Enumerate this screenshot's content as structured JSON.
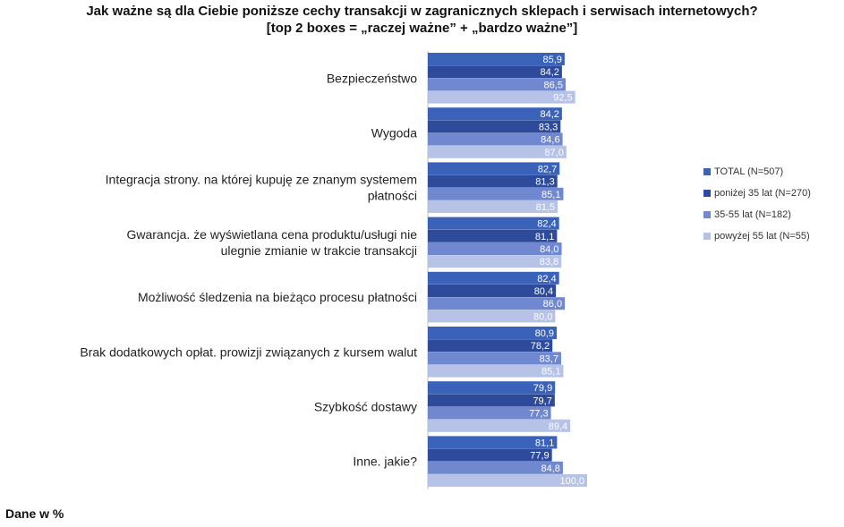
{
  "chart_data": {
    "type": "bar",
    "orientation": "horizontal",
    "title": "Jak ważne są dla Ciebie poniższe cechy transakcji w zagranicznych sklepach i serwisach internetowych?",
    "subtitle": "[top 2 boxes = „raczej ważne” + „bardzo ważne”]",
    "categories": [
      [
        "Bezpieczeństwo"
      ],
      [
        "Wygoda"
      ],
      [
        "Integracja strony. na której kupuję ze znanym systemem",
        "płatności"
      ],
      [
        "Gwarancja. że wyświetlana cena produktu/usługi nie",
        "ulegnie zmianie w trakcie transakcji"
      ],
      [
        "Możliwość śledzenia na bieżąco procesu płatności"
      ],
      [
        "Brak dodatkowych opłat. prowizji związanych z kursem walut"
      ],
      [
        "Szybkość dostawy"
      ],
      [
        "Inne. jakie?"
      ]
    ],
    "series": [
      {
        "name": "TOTAL (N=507)",
        "color": "#3A62B8",
        "label_color": "#ffffff",
        "values": [
          85.9,
          84.2,
          82.7,
          82.4,
          82.4,
          80.9,
          79.9,
          81.1
        ]
      },
      {
        "name": "poniżej 35 lat (N=270)",
        "color": "#2E4A9A",
        "label_color": "#ffffff",
        "values": [
          84.2,
          83.3,
          81.3,
          81.1,
          80.4,
          78.2,
          79.7,
          77.9
        ]
      },
      {
        "name": "35-55 lat (N=182)",
        "color": "#7088D0",
        "label_color": "#ffffff",
        "values": [
          86.5,
          84.6,
          85.1,
          84.0,
          86.0,
          83.7,
          77.3,
          84.8
        ]
      },
      {
        "name": "powyżej 55 lat (N=55)",
        "color": "#B6C2E6",
        "label_color": "#ffffff",
        "values": [
          92.5,
          87.0,
          81.5,
          83.8,
          80.0,
          85.1,
          89.4,
          100.0
        ]
      }
    ],
    "xlim": [
      0,
      100
    ],
    "grid": false,
    "legend_position": "right",
    "decimal_separator": ","
  },
  "footer": "Dane w %"
}
